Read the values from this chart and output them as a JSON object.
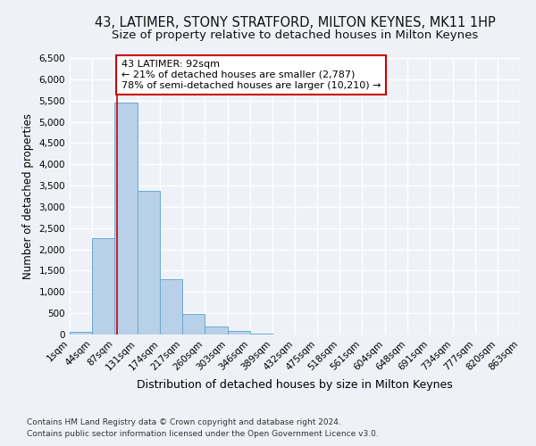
{
  "title_line1": "43, LATIMER, STONY STRATFORD, MILTON KEYNES, MK11 1HP",
  "title_line2": "Size of property relative to detached houses in Milton Keynes",
  "xlabel": "Distribution of detached houses by size in Milton Keynes",
  "ylabel": "Number of detached properties",
  "footer_line1": "Contains HM Land Registry data © Crown copyright and database right 2024.",
  "footer_line2": "Contains public sector information licensed under the Open Government Licence v3.0.",
  "bar_edges": [
    1,
    44,
    87,
    131,
    174,
    217,
    260,
    303,
    346,
    389,
    432,
    475,
    518,
    561,
    604,
    648,
    691,
    734,
    777,
    820,
    863
  ],
  "bar_heights": [
    70,
    2270,
    5450,
    3380,
    1310,
    490,
    185,
    80,
    30,
    0,
    0,
    0,
    0,
    0,
    0,
    0,
    0,
    0,
    0,
    0
  ],
  "bar_color": "#b8d0e8",
  "bar_edge_color": "#6aaad4",
  "property_size": 92,
  "annotation_text": "43 LATIMER: 92sqm\n← 21% of detached houses are smaller (2,787)\n78% of semi-detached houses are larger (10,210) →",
  "annotation_box_color": "#ffffff",
  "annotation_box_edgecolor": "#cc0000",
  "vline_color": "#cc0000",
  "ylim": [
    0,
    6500
  ],
  "yticks": [
    0,
    500,
    1000,
    1500,
    2000,
    2500,
    3000,
    3500,
    4000,
    4500,
    5000,
    5500,
    6000,
    6500
  ],
  "bg_color": "#eef2f8",
  "plot_bg_color": "#eef2f8",
  "grid_color": "#ffffff",
  "title_fontsize": 10.5,
  "subtitle_fontsize": 9.5,
  "xlabel_fontsize": 9,
  "ylabel_fontsize": 8.5,
  "footer_fontsize": 6.5
}
